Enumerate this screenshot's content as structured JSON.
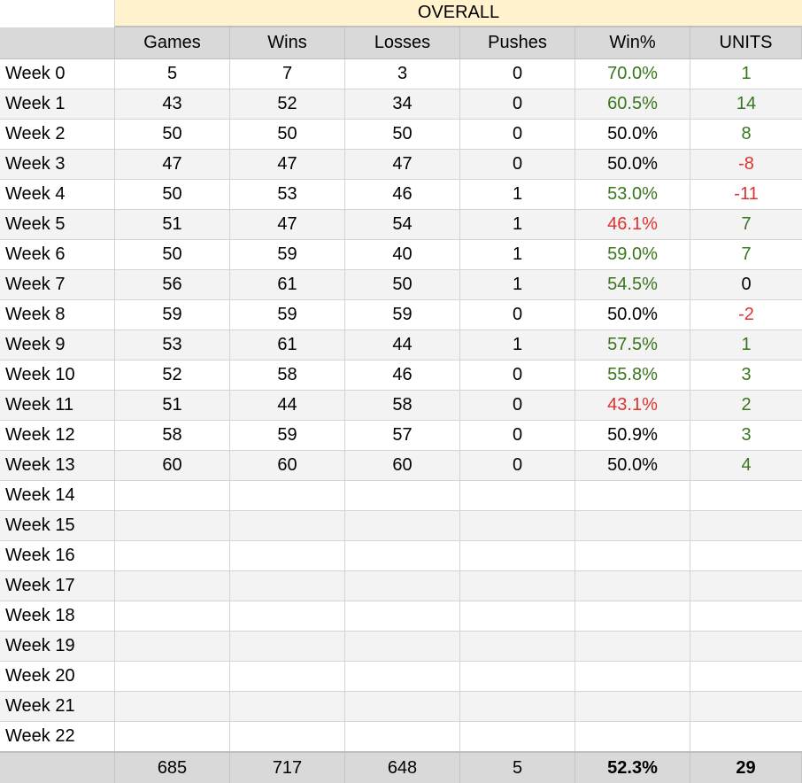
{
  "sheet": {
    "section_title": "OVERALL",
    "headers": [
      "Games",
      "Wins",
      "Losses",
      "Pushes",
      "Win%",
      "UNITS"
    ],
    "rows": [
      {
        "label": "Week 0",
        "games": "5",
        "wins": "7",
        "losses": "3",
        "pushes": "0",
        "win_pct": "70.0%",
        "win_pct_status": "pos",
        "units": "1",
        "units_status": "pos"
      },
      {
        "label": "Week 1",
        "games": "43",
        "wins": "52",
        "losses": "34",
        "pushes": "0",
        "win_pct": "60.5%",
        "win_pct_status": "pos",
        "units": "14",
        "units_status": "pos"
      },
      {
        "label": "Week 2",
        "games": "50",
        "wins": "50",
        "losses": "50",
        "pushes": "0",
        "win_pct": "50.0%",
        "win_pct_status": "neutral",
        "units": "8",
        "units_status": "pos"
      },
      {
        "label": "Week 3",
        "games": "47",
        "wins": "47",
        "losses": "47",
        "pushes": "0",
        "win_pct": "50.0%",
        "win_pct_status": "neutral",
        "units": "-8",
        "units_status": "neg"
      },
      {
        "label": "Week 4",
        "games": "50",
        "wins": "53",
        "losses": "46",
        "pushes": "1",
        "win_pct": "53.0%",
        "win_pct_status": "pos",
        "units": "-11",
        "units_status": "neg"
      },
      {
        "label": "Week 5",
        "games": "51",
        "wins": "47",
        "losses": "54",
        "pushes": "1",
        "win_pct": "46.1%",
        "win_pct_status": "neg",
        "units": "7",
        "units_status": "pos"
      },
      {
        "label": "Week 6",
        "games": "50",
        "wins": "59",
        "losses": "40",
        "pushes": "1",
        "win_pct": "59.0%",
        "win_pct_status": "pos",
        "units": "7",
        "units_status": "pos"
      },
      {
        "label": "Week 7",
        "games": "56",
        "wins": "61",
        "losses": "50",
        "pushes": "1",
        "win_pct": "54.5%",
        "win_pct_status": "pos",
        "units": "0",
        "units_status": "neutral"
      },
      {
        "label": "Week 8",
        "games": "59",
        "wins": "59",
        "losses": "59",
        "pushes": "0",
        "win_pct": "50.0%",
        "win_pct_status": "neutral",
        "units": "-2",
        "units_status": "neg"
      },
      {
        "label": "Week 9",
        "games": "53",
        "wins": "61",
        "losses": "44",
        "pushes": "1",
        "win_pct": "57.5%",
        "win_pct_status": "pos",
        "units": "1",
        "units_status": "pos"
      },
      {
        "label": "Week 10",
        "games": "52",
        "wins": "58",
        "losses": "46",
        "pushes": "0",
        "win_pct": "55.8%",
        "win_pct_status": "pos",
        "units": "3",
        "units_status": "pos"
      },
      {
        "label": "Week 11",
        "games": "51",
        "wins": "44",
        "losses": "58",
        "pushes": "0",
        "win_pct": "43.1%",
        "win_pct_status": "neg",
        "units": "2",
        "units_status": "pos"
      },
      {
        "label": "Week 12",
        "games": "58",
        "wins": "59",
        "losses": "57",
        "pushes": "0",
        "win_pct": "50.9%",
        "win_pct_status": "neutral",
        "units": "3",
        "units_status": "pos"
      },
      {
        "label": "Week 13",
        "games": "60",
        "wins": "60",
        "losses": "60",
        "pushes": "0",
        "win_pct": "50.0%",
        "win_pct_status": "neutral",
        "units": "4",
        "units_status": "pos"
      },
      {
        "label": "Week 14"
      },
      {
        "label": "Week 15"
      },
      {
        "label": "Week 16"
      },
      {
        "label": "Week 17"
      },
      {
        "label": "Week 18"
      },
      {
        "label": "Week 19"
      },
      {
        "label": "Week 20"
      },
      {
        "label": "Week 21"
      },
      {
        "label": "Week 22"
      }
    ],
    "totals": {
      "games": "685",
      "wins": "717",
      "losses": "648",
      "pushes": "5",
      "win_pct": "52.3%",
      "units": "29"
    }
  },
  "colors": {
    "title_band": "#fff2cc",
    "header_bg": "#d9d9d9",
    "alt_row_bg": "#f3f3f3",
    "positive": "#38761d",
    "negative": "#e03131"
  }
}
